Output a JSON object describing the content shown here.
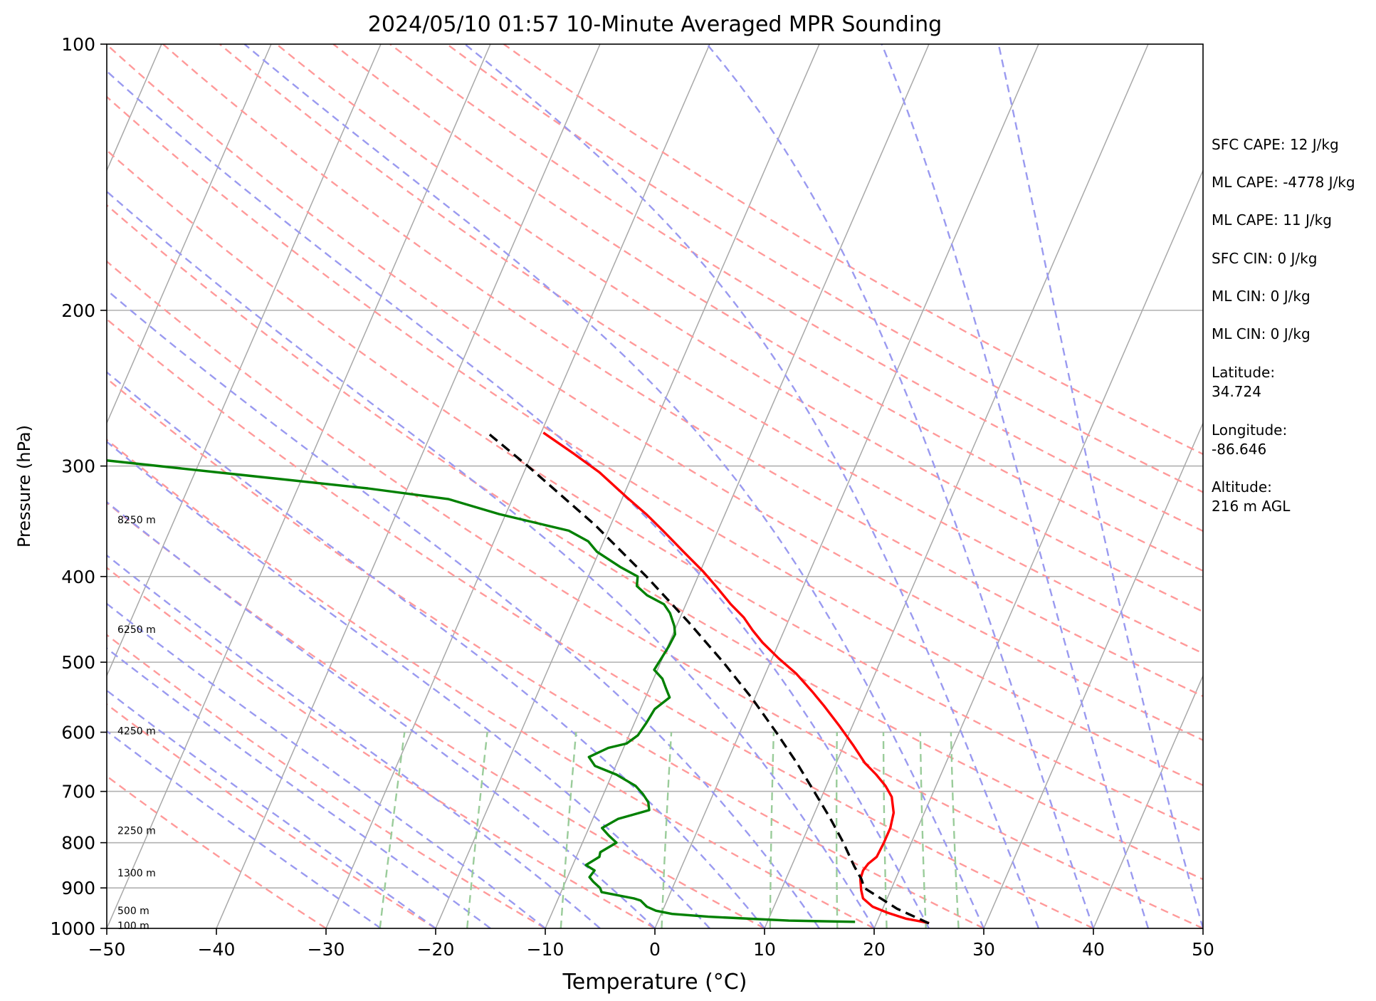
{
  "chart_data": {
    "type": "line",
    "subtype": "skew-t log-p sounding",
    "title": "2024/05/10 01:57 10-Minute Averaged MPR Sounding",
    "xlabel": "Temperature (°C)",
    "ylabel": "Pressure (hPa)",
    "xlim": [
      -50,
      50
    ],
    "ylim": [
      1000,
      100
    ],
    "y_scale": "log",
    "x_ticks": [
      "−50",
      "−40",
      "−30",
      "−20",
      "−10",
      "0",
      "10",
      "20",
      "30",
      "40",
      "50"
    ],
    "y_ticks": [
      "100",
      "200",
      "300",
      "400",
      "500",
      "600",
      "700",
      "800",
      "900",
      "1000"
    ],
    "grid": true,
    "height_labels": [
      {
        "text": "100 m",
        "p": 993
      },
      {
        "text": "500 m",
        "p": 955
      },
      {
        "text": "1300 m",
        "p": 865
      },
      {
        "text": "2250 m",
        "p": 775
      },
      {
        "text": "4250 m",
        "p": 598
      },
      {
        "text": "6250 m",
        "p": 459
      },
      {
        "text": "8250 m",
        "p": 345
      }
    ],
    "series": [
      {
        "role": "temperature",
        "color": "#ff0000",
        "points": [
          {
            "p": 986,
            "t": 24.8
          },
          {
            "p": 975,
            "t": 22.5
          },
          {
            "p": 960,
            "t": 20.6
          },
          {
            "p": 945,
            "t": 19.0
          },
          {
            "p": 925,
            "t": 17.8
          },
          {
            "p": 905,
            "t": 17.3
          },
          {
            "p": 880,
            "t": 16.8
          },
          {
            "p": 860,
            "t": 16.7
          },
          {
            "p": 845,
            "t": 16.9
          },
          {
            "p": 830,
            "t": 17.4
          },
          {
            "p": 800,
            "t": 17.5
          },
          {
            "p": 770,
            "t": 17.5
          },
          {
            "p": 740,
            "t": 17.2
          },
          {
            "p": 710,
            "t": 16.4
          },
          {
            "p": 690,
            "t": 15.4
          },
          {
            "p": 670,
            "t": 14.1
          },
          {
            "p": 650,
            "t": 12.6
          },
          {
            "p": 620,
            "t": 10.8
          },
          {
            "p": 590,
            "t": 8.8
          },
          {
            "p": 560,
            "t": 6.6
          },
          {
            "p": 540,
            "t": 5.0
          },
          {
            "p": 515,
            "t": 2.8
          },
          {
            "p": 495,
            "t": 0.6
          },
          {
            "p": 475,
            "t": -1.5
          },
          {
            "p": 460,
            "t": -2.9
          },
          {
            "p": 445,
            "t": -4.2
          },
          {
            "p": 430,
            "t": -5.9
          },
          {
            "p": 410,
            "t": -8.0
          },
          {
            "p": 395,
            "t": -9.7
          },
          {
            "p": 375,
            "t": -12.3
          },
          {
            "p": 355,
            "t": -15.0
          },
          {
            "p": 340,
            "t": -17.2
          },
          {
            "p": 325,
            "t": -19.7
          },
          {
            "p": 305,
            "t": -23.1
          },
          {
            "p": 290,
            "t": -26.3
          },
          {
            "p": 275,
            "t": -29.8
          }
        ]
      },
      {
        "role": "dewpoint",
        "color": "#008000",
        "points": [
          {
            "p": 983,
            "t": 18.0
          },
          {
            "p": 980,
            "t": 11.9
          },
          {
            "p": 970,
            "t": 4.4
          },
          {
            "p": 963,
            "t": 1.0
          },
          {
            "p": 955,
            "t": -0.6
          },
          {
            "p": 945,
            "t": -1.6
          },
          {
            "p": 930,
            "t": -2.4
          },
          {
            "p": 925,
            "t": -3.1
          },
          {
            "p": 910,
            "t": -6.3
          },
          {
            "p": 900,
            "t": -6.6
          },
          {
            "p": 885,
            "t": -7.5
          },
          {
            "p": 875,
            "t": -8.0
          },
          {
            "p": 860,
            "t": -7.8
          },
          {
            "p": 848,
            "t": -8.8
          },
          {
            "p": 830,
            "t": -7.9
          },
          {
            "p": 820,
            "t": -8.0
          },
          {
            "p": 800,
            "t": -6.9
          },
          {
            "p": 785,
            "t": -7.9
          },
          {
            "p": 770,
            "t": -8.8
          },
          {
            "p": 752,
            "t": -7.7
          },
          {
            "p": 735,
            "t": -5.2
          },
          {
            "p": 720,
            "t": -5.6
          },
          {
            "p": 705,
            "t": -6.4
          },
          {
            "p": 690,
            "t": -7.4
          },
          {
            "p": 670,
            "t": -9.6
          },
          {
            "p": 655,
            "t": -11.9
          },
          {
            "p": 640,
            "t": -12.8
          },
          {
            "p": 625,
            "t": -11.4
          },
          {
            "p": 618,
            "t": -9.9
          },
          {
            "p": 605,
            "t": -9.2
          },
          {
            "p": 585,
            "t": -8.9
          },
          {
            "p": 565,
            "t": -8.7
          },
          {
            "p": 548,
            "t": -7.8
          },
          {
            "p": 535,
            "t": -8.5
          },
          {
            "p": 522,
            "t": -9.2
          },
          {
            "p": 510,
            "t": -10.3
          },
          {
            "p": 495,
            "t": -10.1
          },
          {
            "p": 480,
            "t": -9.9
          },
          {
            "p": 465,
            "t": -9.8
          },
          {
            "p": 455,
            "t": -10.2
          },
          {
            "p": 440,
            "t": -11.1
          },
          {
            "p": 430,
            "t": -12.0
          },
          {
            "p": 420,
            "t": -13.9
          },
          {
            "p": 410,
            "t": -15.2
          },
          {
            "p": 400,
            "t": -15.5
          },
          {
            "p": 390,
            "t": -17.5
          },
          {
            "p": 375,
            "t": -20.2
          },
          {
            "p": 365,
            "t": -21.4
          },
          {
            "p": 355,
            "t": -23.6
          },
          {
            "p": 340,
            "t": -30.6
          },
          {
            "p": 327,
            "t": -35.8
          },
          {
            "p": 318,
            "t": -43.6
          },
          {
            "p": 307,
            "t": -55.7
          },
          {
            "p": 295,
            "t": -69.3
          }
        ]
      },
      {
        "role": "parcel",
        "color": "#000000",
        "style": "dashed",
        "points": [
          {
            "p": 987,
            "t": 24.8
          },
          {
            "p": 950,
            "t": 21.3
          },
          {
            "p": 900,
            "t": 17.5
          },
          {
            "p": 880,
            "t": 16.9
          },
          {
            "p": 850,
            "t": 15.7
          },
          {
            "p": 800,
            "t": 13.8
          },
          {
            "p": 750,
            "t": 11.6
          },
          {
            "p": 700,
            "t": 9.1
          },
          {
            "p": 650,
            "t": 6.4
          },
          {
            "p": 600,
            "t": 3.3
          },
          {
            "p": 550,
            "t": -0.2
          },
          {
            "p": 500,
            "t": -4.3
          },
          {
            "p": 450,
            "t": -9.1
          },
          {
            "p": 400,
            "t": -14.7
          },
          {
            "p": 350,
            "t": -21.4
          },
          {
            "p": 300,
            "t": -29.9
          },
          {
            "p": 275,
            "t": -34.9
          }
        ]
      }
    ],
    "reference_lines": {
      "dry_adiabats_theta_k": [
        -30,
        -20,
        -10,
        0,
        10,
        20,
        30,
        40,
        50,
        60,
        70,
        80,
        90,
        100,
        110,
        120,
        130,
        140,
        150,
        160
      ],
      "moist_adiabats_surface_c": [
        -25,
        -20,
        -15,
        -10,
        -5,
        0,
        5,
        10,
        15,
        20,
        25,
        30,
        35,
        40,
        45,
        50
      ],
      "mixing_ratio_lines_gkg": [
        0.5,
        1,
        2,
        4,
        8,
        12,
        16,
        20,
        24
      ],
      "dry_adiabat_color": "#ff9a9a",
      "moist_adiabat_color": "#9a9af0",
      "mixing_ratio_color": "#9acc9a"
    }
  },
  "info_panel": {
    "sfc_cape": "SFC CAPE: 12 J/kg",
    "ml_cape_1": "ML CAPE: -4778 J/kg",
    "ml_cape_2": "ML CAPE: 11 J/kg",
    "sfc_cin": "SFC CIN: 0 J/kg",
    "ml_cin_1": "ML CIN: 0 J/kg",
    "ml_cin_2": "ML CIN: 0 J/kg",
    "latitude_label": "Latitude:",
    "latitude_value": "34.724",
    "longitude_label": "Longitude:",
    "longitude_value": "-86.646",
    "altitude_label": "Altitude:",
    "altitude_value": "216 m AGL"
  }
}
